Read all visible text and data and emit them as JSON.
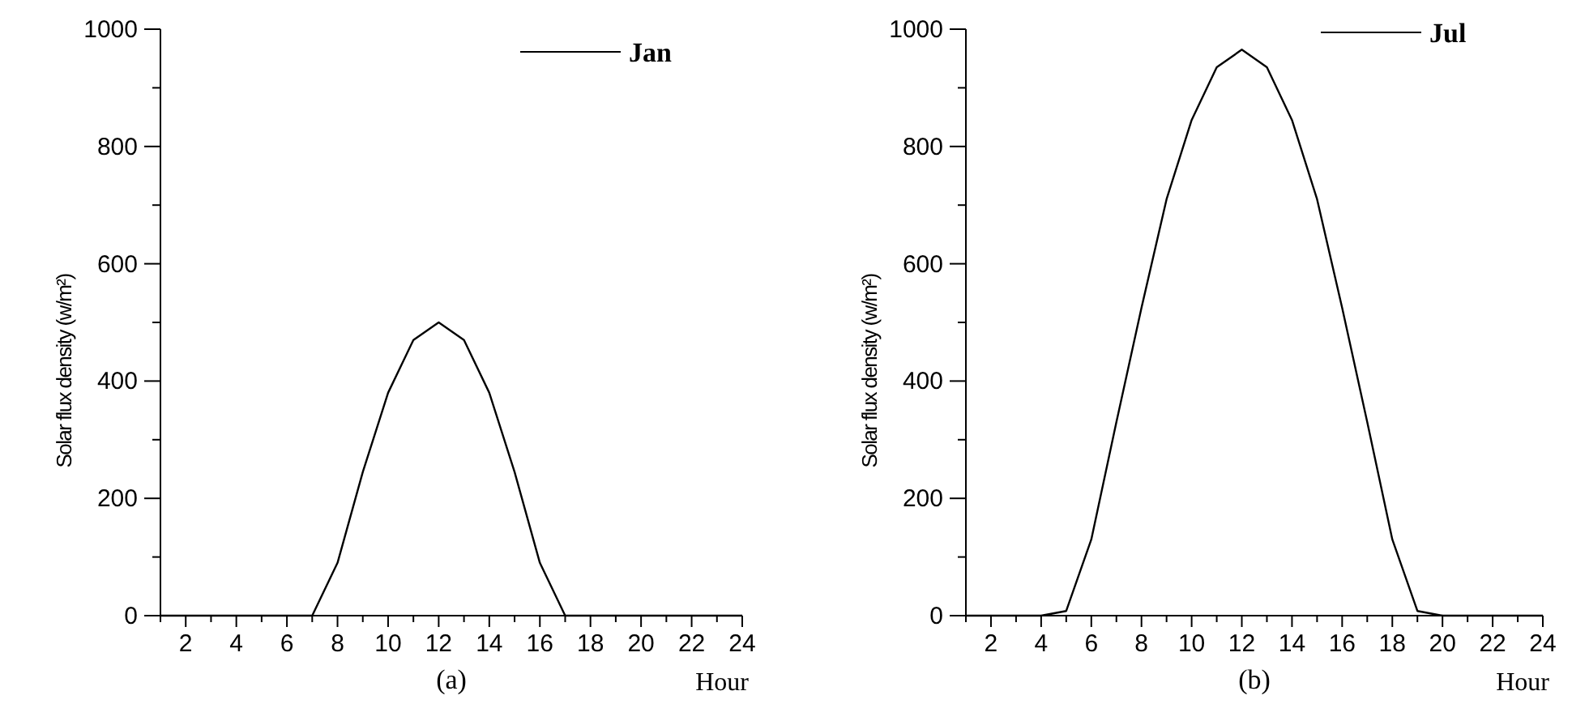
{
  "chart_data": [
    {
      "type": "line",
      "xlabel": "Hour",
      "ylabel": "Solar flux density (w/m²)",
      "annotations": [
        "(a)"
      ],
      "legend": "top right",
      "marker": "none",
      "line_style": "solid",
      "grid": false,
      "x": [
        1,
        2,
        3,
        4,
        5,
        6,
        7,
        8,
        9,
        10,
        11,
        12,
        13,
        14,
        15,
        16,
        17,
        18,
        19,
        20,
        21,
        22,
        23,
        24
      ],
      "series": [
        {
          "name": "Jan",
          "color": "#000000",
          "values": [
            0,
            0,
            0,
            0,
            0,
            0,
            0,
            90,
            245,
            380,
            470,
            500,
            470,
            380,
            245,
            90,
            0,
            0,
            0,
            0,
            0,
            0,
            0,
            0
          ]
        }
      ],
      "xlim": [
        1,
        24
      ],
      "xticks": [
        {
          "value": 1,
          "label": null
        },
        2,
        {
          "value": 3,
          "label": null
        },
        4,
        {
          "value": 5,
          "label": null
        },
        6,
        {
          "value": 7,
          "label": null
        },
        8,
        {
          "value": 9,
          "label": null
        },
        10,
        {
          "value": 11,
          "label": null
        },
        12,
        {
          "value": 13,
          "label": null
        },
        14,
        {
          "value": 15,
          "label": null
        },
        16,
        {
          "value": 17,
          "label": null
        },
        18,
        {
          "value": 19,
          "label": null
        },
        20,
        {
          "value": 21,
          "label": null
        },
        22,
        {
          "value": 23,
          "label": null
        },
        24
      ],
      "ylim": [
        0,
        1000
      ],
      "yticks": [
        0,
        {
          "value": 100,
          "label": null
        },
        200,
        {
          "value": 300,
          "label": null
        },
        400,
        {
          "value": 500,
          "label": null
        },
        600,
        {
          "value": 700,
          "label": null
        },
        800,
        {
          "value": 900,
          "label": null
        },
        1000
      ]
    },
    {
      "type": "line",
      "xlabel": "Hour",
      "ylabel": "Solar flux density (w/m²)",
      "annotations": [
        "(b)"
      ],
      "legend": "top right",
      "marker": "none",
      "line_style": "solid",
      "grid": false,
      "x": [
        1,
        2,
        3,
        4,
        5,
        6,
        7,
        8,
        9,
        10,
        11,
        12,
        13,
        14,
        15,
        16,
        17,
        18,
        19,
        20,
        21,
        22,
        23,
        24
      ],
      "series": [
        {
          "name": "Jul",
          "color": "#000000",
          "values": [
            0,
            0,
            0,
            0,
            8,
            130,
            330,
            525,
            710,
            845,
            935,
            965,
            935,
            845,
            710,
            525,
            330,
            130,
            8,
            0,
            0,
            0,
            0,
            0
          ]
        }
      ],
      "xlim": [
        1,
        24
      ],
      "xticks": [
        {
          "value": 1,
          "label": null
        },
        2,
        {
          "value": 3,
          "label": null
        },
        4,
        {
          "value": 5,
          "label": null
        },
        6,
        {
          "value": 7,
          "label": null
        },
        8,
        {
          "value": 9,
          "label": null
        },
        10,
        {
          "value": 11,
          "label": null
        },
        12,
        {
          "value": 13,
          "label": null
        },
        14,
        {
          "value": 15,
          "label": null
        },
        16,
        {
          "value": 17,
          "label": null
        },
        18,
        {
          "value": 19,
          "label": null
        },
        20,
        {
          "value": 21,
          "label": null
        },
        22,
        {
          "value": 23,
          "label": null
        },
        24
      ],
      "ylim": [
        0,
        1000
      ],
      "yticks": [
        0,
        {
          "value": 100,
          "label": null
        },
        200,
        {
          "value": 300,
          "label": null
        },
        400,
        {
          "value": 500,
          "label": null
        },
        600,
        {
          "value": 700,
          "label": null
        },
        800,
        {
          "value": 900,
          "label": null
        },
        1000
      ]
    }
  ]
}
